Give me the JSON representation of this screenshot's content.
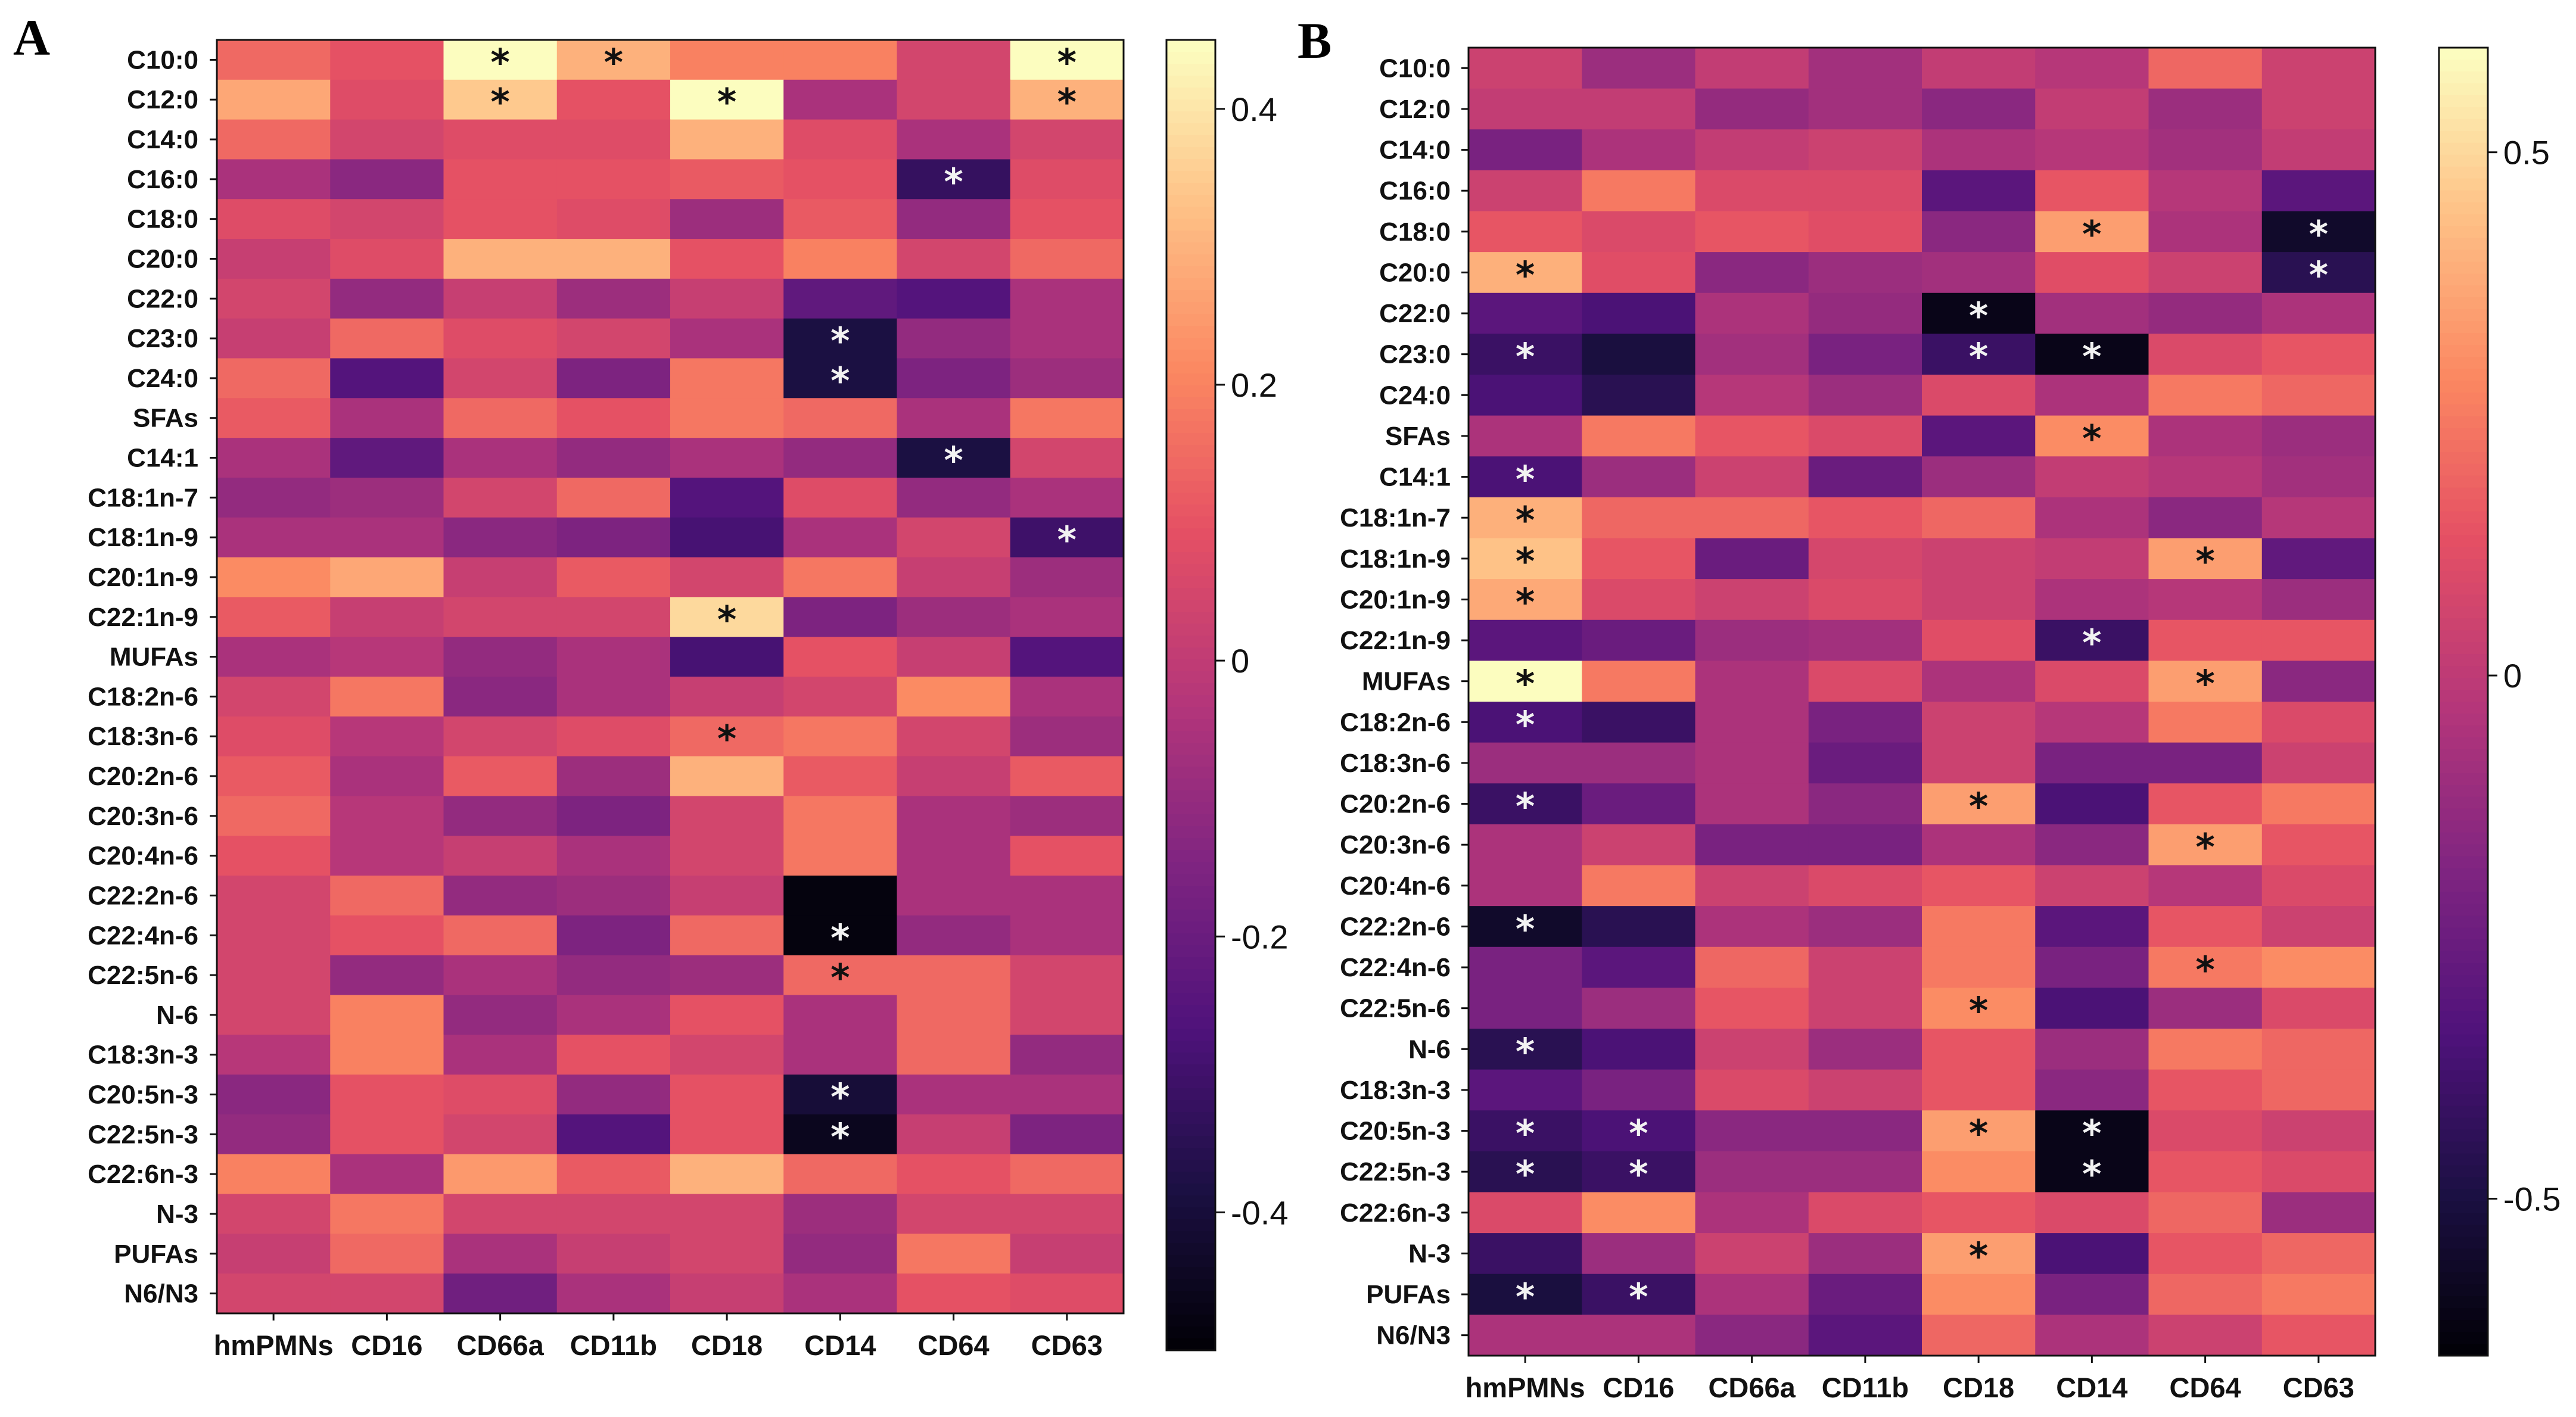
{
  "chart_data": [
    {
      "type": "heatmap",
      "panel_label": "A",
      "columns": [
        "hmPMNs",
        "CD16",
        "CD66a",
        "CD11b",
        "CD18",
        "CD14",
        "CD64",
        "CD63"
      ],
      "rows": [
        "C10:0",
        "C12:0",
        "C14:0",
        "C16:0",
        "C18:0",
        "C20:0",
        "C22:0",
        "C23:0",
        "C24:0",
        "SFAs",
        "C14:1",
        "C18:1n-7",
        "C18:1n-9",
        "C20:1n-9",
        "C22:1n-9",
        "MUFAs",
        "C18:2n-6",
        "C18:3n-6",
        "C20:2n-6",
        "C20:3n-6",
        "C20:4n-6",
        "C22:2n-6",
        "C22:4n-6",
        "C22:5n-6",
        "N-6",
        "C18:3n-3",
        "C20:5n-3",
        "C22:5n-3",
        "C22:6n-3",
        "N-3",
        "PUFAs",
        "N6/N3"
      ],
      "values": [
        [
          0.15,
          0.1,
          0.45,
          0.3,
          0.2,
          0.2,
          0.05,
          0.45
        ],
        [
          0.28,
          0.08,
          0.35,
          0.1,
          0.45,
          -0.05,
          0.05,
          0.3
        ],
        [
          0.15,
          0.05,
          0.08,
          0.08,
          0.3,
          0.08,
          -0.05,
          0.05
        ],
        [
          -0.05,
          -0.12,
          0.1,
          0.1,
          0.12,
          0.1,
          -0.32,
          0.08
        ],
        [
          0.08,
          0.05,
          0.1,
          0.08,
          -0.08,
          0.12,
          -0.1,
          0.1
        ],
        [
          0.02,
          0.08,
          0.3,
          0.3,
          0.1,
          0.2,
          0.05,
          0.15
        ],
        [
          0.05,
          -0.1,
          0.02,
          -0.08,
          0.02,
          -0.22,
          -0.25,
          -0.05
        ],
        [
          0.02,
          0.15,
          0.08,
          0.05,
          -0.05,
          -0.38,
          -0.1,
          -0.05
        ],
        [
          0.15,
          -0.25,
          0.05,
          -0.15,
          0.18,
          -0.38,
          -0.15,
          -0.08
        ],
        [
          0.12,
          -0.05,
          0.15,
          0.1,
          0.18,
          0.15,
          -0.05,
          0.18
        ],
        [
          -0.05,
          -0.22,
          -0.05,
          -0.1,
          -0.05,
          -0.1,
          -0.38,
          0.05
        ],
        [
          -0.1,
          -0.08,
          0.05,
          0.15,
          -0.25,
          0.08,
          -0.1,
          -0.05
        ],
        [
          -0.05,
          -0.05,
          -0.12,
          -0.15,
          -0.28,
          -0.05,
          0.05,
          -0.3
        ],
        [
          0.22,
          0.28,
          0.02,
          0.12,
          0.05,
          0.18,
          0.02,
          -0.08
        ],
        [
          0.12,
          0.02,
          0.05,
          0.05,
          0.38,
          -0.15,
          -0.08,
          -0.05
        ],
        [
          -0.05,
          -0.02,
          -0.1,
          -0.05,
          -0.28,
          0.1,
          0.02,
          -0.25
        ],
        [
          0.05,
          0.18,
          -0.12,
          -0.05,
          0.02,
          0.05,
          0.22,
          -0.05
        ],
        [
          0.08,
          -0.02,
          0.05,
          0.08,
          0.15,
          0.18,
          0.05,
          -0.08
        ],
        [
          0.12,
          -0.05,
          0.12,
          -0.08,
          0.3,
          0.12,
          0.02,
          0.12
        ],
        [
          0.15,
          -0.02,
          -0.1,
          -0.15,
          0.05,
          0.18,
          -0.05,
          -0.08
        ],
        [
          0.1,
          -0.02,
          0.02,
          -0.05,
          0.05,
          0.18,
          -0.05,
          0.1
        ],
        [
          0.05,
          0.15,
          -0.1,
          -0.08,
          0.02,
          -0.48,
          -0.05,
          -0.05
        ],
        [
          0.05,
          0.1,
          0.15,
          -0.15,
          0.15,
          -0.48,
          -0.1,
          -0.05
        ],
        [
          0.05,
          -0.1,
          -0.05,
          -0.1,
          -0.08,
          0.15,
          0.15,
          0.05
        ],
        [
          0.05,
          0.2,
          -0.1,
          -0.05,
          0.1,
          -0.05,
          0.15,
          0.05
        ],
        [
          -0.02,
          0.2,
          -0.05,
          0.1,
          0.05,
          -0.05,
          0.15,
          -0.1
        ],
        [
          -0.12,
          0.1,
          0.08,
          -0.1,
          0.1,
          -0.4,
          -0.05,
          -0.05
        ],
        [
          -0.1,
          0.1,
          0.05,
          -0.25,
          0.1,
          -0.45,
          0.02,
          -0.15
        ],
        [
          0.2,
          -0.05,
          0.25,
          0.12,
          0.3,
          0.15,
          0.1,
          0.15
        ],
        [
          0.05,
          0.18,
          0.05,
          0.05,
          0.05,
          -0.08,
          0.05,
          0.05
        ],
        [
          0.02,
          0.15,
          -0.05,
          0.02,
          0.05,
          -0.1,
          0.18,
          0.02
        ],
        [
          0.05,
          0.05,
          -0.18,
          -0.05,
          0.02,
          -0.05,
          0.1,
          0.08
        ]
      ],
      "significant": [
        [
          0,
          2
        ],
        [
          0,
          3
        ],
        [
          0,
          7
        ],
        [
          1,
          2
        ],
        [
          1,
          4
        ],
        [
          1,
          7
        ],
        [
          3,
          6
        ],
        [
          7,
          5
        ],
        [
          8,
          5
        ],
        [
          10,
          6
        ],
        [
          12,
          7
        ],
        [
          14,
          4
        ],
        [
          17,
          4
        ],
        [
          22,
          5
        ],
        [
          23,
          5
        ],
        [
          26,
          5
        ],
        [
          27,
          5
        ]
      ],
      "colorbar": {
        "min": -0.5,
        "max": 0.45,
        "ticks": [
          0.4,
          0.2,
          0,
          -0.2,
          -0.4
        ],
        "tick_labels": [
          "0.4",
          "0.2",
          "0",
          "-0.2",
          "-0.4"
        ]
      },
      "star_label": "*"
    },
    {
      "type": "heatmap",
      "panel_label": "B",
      "columns": [
        "hmPMNs",
        "CD16",
        "CD66a",
        "CD11b",
        "CD18",
        "CD14",
        "CD64",
        "CD63"
      ],
      "rows": [
        "C10:0",
        "C12:0",
        "C14:0",
        "C16:0",
        "C18:0",
        "C20:0",
        "C22:0",
        "C23:0",
        "C24:0",
        "SFAs",
        "C14:1",
        "C18:1n-7",
        "C18:1n-9",
        "C20:1n-9",
        "C22:1n-9",
        "MUFAs",
        "C18:2n-6",
        "C18:3n-6",
        "C20:2n-6",
        "C20:3n-6",
        "C20:4n-6",
        "C22:2n-6",
        "C22:4n-6",
        "C22:5n-6",
        "N-6",
        "C18:3n-3",
        "C20:5n-3",
        "C22:5n-3",
        "C22:6n-3",
        "N-3",
        "PUFAs",
        "N6/N3"
      ],
      "values": [
        [
          0.05,
          -0.1,
          0.02,
          -0.08,
          0.02,
          -0.02,
          0.2,
          0.05
        ],
        [
          0.02,
          0.02,
          -0.12,
          -0.08,
          -0.15,
          0.02,
          -0.1,
          0.05
        ],
        [
          -0.2,
          -0.05,
          0.02,
          0.05,
          -0.05,
          -0.02,
          -0.08,
          0.02
        ],
        [
          0.05,
          0.25,
          0.1,
          0.1,
          -0.3,
          0.15,
          -0.02,
          -0.3
        ],
        [
          0.15,
          0.1,
          0.15,
          0.12,
          -0.15,
          0.35,
          -0.05,
          -0.55
        ],
        [
          0.4,
          0.12,
          -0.15,
          -0.1,
          -0.08,
          0.12,
          0.05,
          -0.45
        ],
        [
          -0.3,
          -0.35,
          -0.05,
          -0.12,
          -0.6,
          -0.08,
          -0.12,
          -0.05
        ],
        [
          -0.4,
          -0.5,
          -0.08,
          -0.2,
          -0.4,
          -0.6,
          0.1,
          0.15
        ],
        [
          -0.35,
          -0.45,
          -0.02,
          -0.1,
          0.1,
          -0.05,
          0.25,
          0.2
        ],
        [
          -0.05,
          0.25,
          0.15,
          0.1,
          -0.3,
          0.3,
          -0.05,
          -0.1
        ],
        [
          -0.35,
          -0.1,
          0.05,
          -0.25,
          -0.1,
          0.02,
          -0.02,
          -0.08
        ],
        [
          0.4,
          0.2,
          0.2,
          0.15,
          0.2,
          -0.05,
          -0.15,
          -0.02
        ],
        [
          0.45,
          0.15,
          -0.25,
          0.08,
          0.05,
          0.02,
          0.35,
          -0.28
        ],
        [
          0.38,
          0.1,
          0.05,
          0.1,
          0.05,
          -0.05,
          -0.02,
          -0.1
        ],
        [
          -0.3,
          -0.25,
          -0.1,
          -0.08,
          0.12,
          -0.4,
          0.15,
          0.15
        ],
        [
          0.6,
          0.25,
          -0.05,
          0.1,
          -0.05,
          0.1,
          0.35,
          -0.15
        ],
        [
          -0.35,
          -0.4,
          -0.05,
          -0.2,
          0.05,
          -0.02,
          0.25,
          0.1
        ],
        [
          -0.1,
          -0.1,
          -0.05,
          -0.25,
          0.05,
          -0.2,
          -0.2,
          0.05
        ],
        [
          -0.4,
          -0.25,
          -0.05,
          -0.15,
          0.35,
          -0.35,
          0.15,
          0.25
        ],
        [
          -0.05,
          0.05,
          -0.2,
          -0.2,
          -0.05,
          -0.15,
          0.35,
          0.15
        ],
        [
          -0.05,
          0.25,
          0.05,
          0.1,
          0.15,
          0.05,
          -0.02,
          0.1
        ],
        [
          -0.55,
          -0.45,
          -0.05,
          -0.1,
          0.25,
          -0.3,
          0.15,
          0.05
        ],
        [
          -0.2,
          -0.3,
          0.2,
          0.05,
          0.25,
          -0.2,
          0.25,
          0.3
        ],
        [
          -0.2,
          -0.1,
          0.15,
          0.05,
          0.3,
          -0.35,
          -0.1,
          0.1
        ],
        [
          -0.45,
          -0.35,
          0.05,
          -0.1,
          0.15,
          -0.1,
          0.25,
          0.2
        ],
        [
          -0.3,
          -0.2,
          0.1,
          0.05,
          0.15,
          -0.15,
          0.15,
          0.2
        ],
        [
          -0.4,
          -0.35,
          -0.15,
          -0.15,
          0.35,
          -0.6,
          0.1,
          0.05
        ],
        [
          -0.45,
          -0.4,
          -0.1,
          -0.1,
          0.3,
          -0.6,
          0.15,
          0.1
        ],
        [
          0.1,
          0.3,
          -0.05,
          0.1,
          0.15,
          0.1,
          0.2,
          -0.1
        ],
        [
          -0.4,
          -0.1,
          0.05,
          -0.1,
          0.35,
          -0.35,
          0.15,
          0.2
        ],
        [
          -0.5,
          -0.4,
          -0.05,
          -0.25,
          0.3,
          -0.2,
          0.2,
          0.25
        ],
        [
          -0.05,
          -0.05,
          -0.15,
          -0.3,
          0.2,
          -0.05,
          0.05,
          0.15
        ]
      ],
      "significant": [
        [
          4,
          5
        ],
        [
          4,
          7
        ],
        [
          5,
          0
        ],
        [
          5,
          7
        ],
        [
          6,
          4
        ],
        [
          7,
          0
        ],
        [
          7,
          4
        ],
        [
          7,
          5
        ],
        [
          9,
          5
        ],
        [
          10,
          0
        ],
        [
          11,
          0
        ],
        [
          12,
          0
        ],
        [
          12,
          6
        ],
        [
          13,
          0
        ],
        [
          14,
          5
        ],
        [
          15,
          0
        ],
        [
          15,
          6
        ],
        [
          16,
          0
        ],
        [
          18,
          0
        ],
        [
          18,
          4
        ],
        [
          19,
          6
        ],
        [
          21,
          0
        ],
        [
          22,
          6
        ],
        [
          23,
          4
        ],
        [
          24,
          0
        ],
        [
          26,
          0
        ],
        [
          26,
          1
        ],
        [
          26,
          4
        ],
        [
          26,
          5
        ],
        [
          27,
          0
        ],
        [
          27,
          1
        ],
        [
          27,
          5
        ],
        [
          29,
          4
        ],
        [
          30,
          0
        ],
        [
          30,
          1
        ]
      ],
      "colorbar": {
        "min": -0.65,
        "max": 0.6,
        "ticks": [
          0.5,
          0,
          -0.5
        ],
        "tick_labels": [
          "0.5",
          "0",
          "-0.5"
        ]
      },
      "star_label": "*"
    }
  ]
}
